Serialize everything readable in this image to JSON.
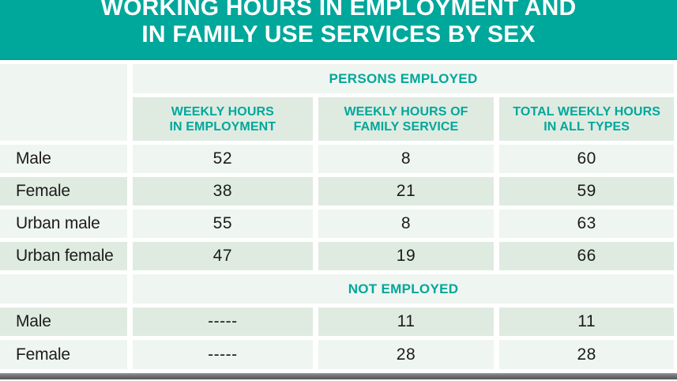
{
  "title": {
    "line1": "WORKING HOURS IN EMPLOYMENT AND",
    "line2": "IN FAMILY USE SERVICES BY SEX"
  },
  "table": {
    "persons_employed_header": "PERSONS EMPLOYED",
    "not_employed_header": "NOT EMPLOYED",
    "columns": [
      {
        "line1": "WEEKLY HOURS",
        "line2": "IN EMPLOYMENT"
      },
      {
        "line1": "WEEKLY HOURS OF",
        "line2": "FAMILY SERVICE"
      },
      {
        "line1": "TOTAL WEEKLY HOURS",
        "line2": "IN ALL TYPES"
      }
    ],
    "employed_rows": [
      {
        "label": "Male",
        "employment": "52",
        "family": "8",
        "total": "60"
      },
      {
        "label": "Female",
        "employment": "38",
        "family": "21",
        "total": "59"
      },
      {
        "label": "Urban male",
        "employment": "55",
        "family": "8",
        "total": "63"
      },
      {
        "label": "Urban female",
        "employment": "47",
        "family": "19",
        "total": "66"
      }
    ],
    "not_employed_rows": [
      {
        "label": "Male",
        "employment": "-----",
        "family": "11",
        "total": "11"
      },
      {
        "label": "Female",
        "employment": "-----",
        "family": "28",
        "total": "28"
      }
    ]
  },
  "colors": {
    "teal": "#00a79b",
    "row_light": "#eff5f0",
    "row_dark": "#dfebe1",
    "text_dark": "#1c1c1a",
    "title_text": "#ffffff",
    "bottom_bar_gray": "#6f7073"
  },
  "chart_data": {
    "type": "table",
    "title": "WORKING HOURS IN EMPLOYMENT AND IN FAMILY USE SERVICES BY SEX",
    "sections": [
      {
        "section": "PERSONS EMPLOYED",
        "columns": [
          "WEEKLY HOURS IN EMPLOYMENT",
          "WEEKLY HOURS OF FAMILY SERVICE",
          "TOTAL WEEKLY HOURS IN ALL TYPES"
        ],
        "rows": [
          {
            "label": "Male",
            "values": [
              52,
              8,
              60
            ]
          },
          {
            "label": "Female",
            "values": [
              38,
              21,
              59
            ]
          },
          {
            "label": "Urban male",
            "values": [
              55,
              8,
              63
            ]
          },
          {
            "label": "Urban female",
            "values": [
              47,
              19,
              66
            ]
          }
        ]
      },
      {
        "section": "NOT EMPLOYED",
        "columns": [
          "WEEKLY HOURS IN EMPLOYMENT",
          "WEEKLY HOURS OF FAMILY SERVICE",
          "TOTAL WEEKLY HOURS IN ALL TYPES"
        ],
        "rows": [
          {
            "label": "Male",
            "values": [
              null,
              11,
              11
            ]
          },
          {
            "label": "Female",
            "values": [
              null,
              28,
              28
            ]
          }
        ]
      }
    ]
  }
}
